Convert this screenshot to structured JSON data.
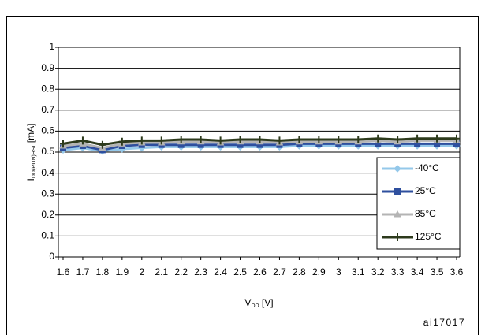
{
  "chart_data": {
    "type": "line",
    "x": [
      1.6,
      1.7,
      1.8,
      1.9,
      2,
      2.1,
      2.2,
      2.3,
      2.4,
      2.5,
      2.6,
      2.7,
      2.8,
      2.9,
      3,
      3.1,
      3.2,
      3.3,
      3.4,
      3.5,
      3.6
    ],
    "xlim": [
      1.6,
      3.6
    ],
    "xticks": [
      1.6,
      1.7,
      1.8,
      1.9,
      2,
      2.1,
      2.2,
      2.3,
      2.4,
      2.5,
      2.6,
      2.7,
      2.8,
      2.9,
      3,
      3.1,
      3.2,
      3.3,
      3.4,
      3.5,
      3.6
    ],
    "ylim": [
      0,
      1
    ],
    "yticks": [
      0,
      0.1,
      0.2,
      0.3,
      0.4,
      0.5,
      0.6,
      0.7,
      0.8,
      0.9,
      1
    ],
    "grid": true,
    "y_label": {
      "symbol": "I",
      "subscript": "DD(RUN)HSI",
      "unit": "[mA]"
    },
    "x_label": {
      "symbol": "V",
      "subscript": "DD",
      "unit": "[V]"
    },
    "figure_id": "ai17017",
    "legend": "right",
    "series": [
      {
        "name": "-40°C",
        "color": "#94c8ea",
        "marker": "diamond",
        "values": [
          0.51,
          0.52,
          0.505,
          0.515,
          0.52,
          0.525,
          0.525,
          0.525,
          0.525,
          0.525,
          0.525,
          0.525,
          0.53,
          0.53,
          0.53,
          0.53,
          0.53,
          0.53,
          0.53,
          0.53,
          0.53
        ]
      },
      {
        "name": "25°C",
        "color": "#2e4f9e",
        "marker": "square",
        "values": [
          0.52,
          0.53,
          0.51,
          0.53,
          0.535,
          0.535,
          0.535,
          0.535,
          0.535,
          0.535,
          0.535,
          0.535,
          0.54,
          0.54,
          0.54,
          0.54,
          0.54,
          0.54,
          0.54,
          0.54,
          0.54
        ]
      },
      {
        "name": "85°C",
        "color": "#b4b4b4",
        "marker": "triangle",
        "values": [
          0.53,
          0.54,
          0.52,
          0.54,
          0.545,
          0.545,
          0.55,
          0.55,
          0.545,
          0.55,
          0.55,
          0.545,
          0.55,
          0.55,
          0.55,
          0.55,
          0.555,
          0.55,
          0.555,
          0.555,
          0.555
        ]
      },
      {
        "name": "125°C",
        "color": "#2d3a1c",
        "marker": "plus",
        "values": [
          0.54,
          0.555,
          0.535,
          0.55,
          0.555,
          0.555,
          0.56,
          0.56,
          0.555,
          0.56,
          0.56,
          0.555,
          0.56,
          0.56,
          0.56,
          0.56,
          0.565,
          0.56,
          0.565,
          0.565,
          0.565
        ]
      }
    ]
  }
}
